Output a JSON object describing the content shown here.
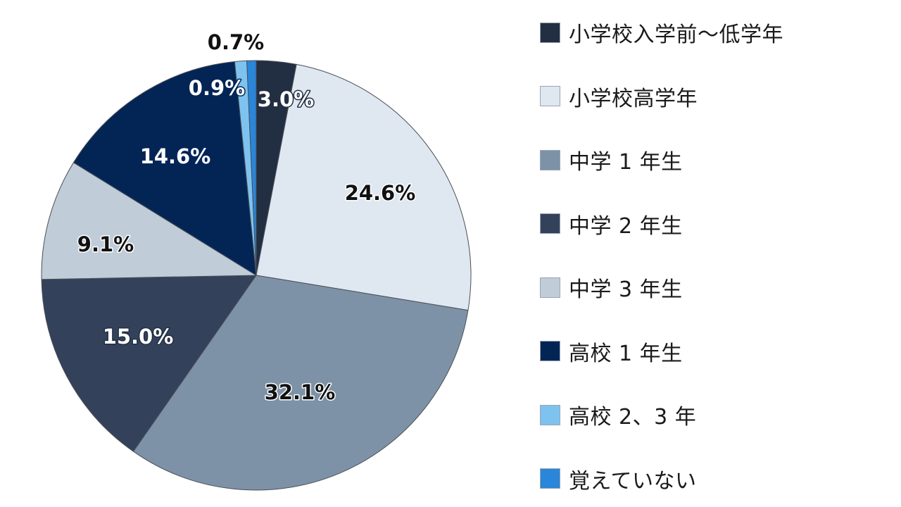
{
  "chart_data": {
    "type": "pie",
    "title": "",
    "start_angle": "12 o'clock",
    "direction": "clockwise",
    "legend_position": "right",
    "categories": [
      "小学校入学前〜低学年",
      "小学校高学年",
      "中学 1 年生",
      "中学 2 年生",
      "中学 3 年生",
      "高校 1 年生",
      "高校 2、3 年",
      "覚えていない"
    ],
    "values": [
      3.0,
      24.6,
      32.1,
      15.0,
      9.1,
      14.6,
      0.9,
      0.7
    ],
    "data_labels": [
      "3.0%",
      "24.6%",
      "32.1%",
      "15.0%",
      "9.1%",
      "14.6%",
      "0.9%",
      "0.7%"
    ],
    "colors": [
      "#222e42",
      "#dfe7f0",
      "#7d92a7",
      "#33425a",
      "#c0ccd8",
      "#032556",
      "#7ec3f0",
      "#2a86d8"
    ],
    "label_colors": [
      "#ffffff",
      "#111111",
      "#111111",
      "#ffffff",
      "#111111",
      "#ffffff",
      "#ffffff",
      "#111111"
    ],
    "label_outline_colors": [
      "#222e42",
      "#ffffff",
      "#ffffff",
      "#222e42",
      "#ffffff",
      "#032556",
      "#032556",
      "#ffffff"
    ]
  }
}
